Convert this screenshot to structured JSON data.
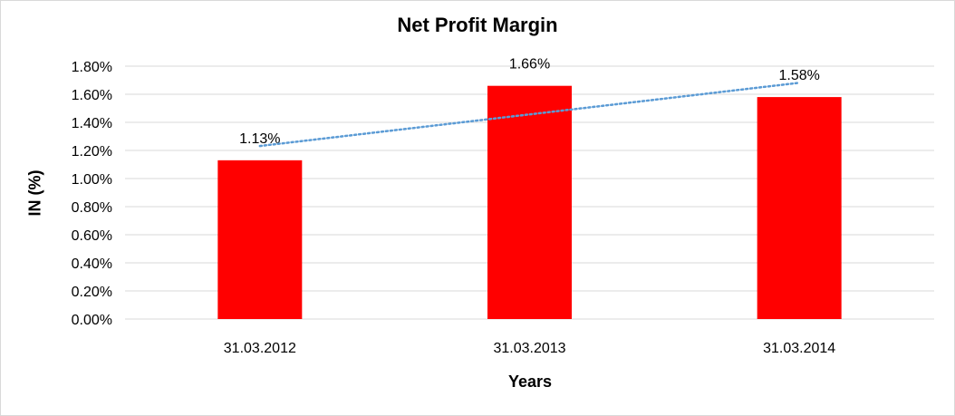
{
  "chart_data": {
    "type": "bar",
    "title": "Net Profit Margin",
    "xlabel": "Years",
    "ylabel": "IN (%)",
    "categories": [
      "31.03.2012",
      "31.03.2013",
      "31.03.2014"
    ],
    "values": [
      1.13,
      1.66,
      1.58
    ],
    "value_labels": [
      "1.13%",
      "1.66%",
      "1.58%"
    ],
    "ylim": [
      0,
      1.8
    ],
    "yticks": [
      "0.00%",
      "0.20%",
      "0.40%",
      "0.60%",
      "0.80%",
      "1.00%",
      "1.20%",
      "1.40%",
      "1.60%",
      "1.80%"
    ],
    "trendline": {
      "type": "linear",
      "style": "dotted"
    },
    "grid": true,
    "legend": "none",
    "colors": {
      "bar": "#ff0000",
      "trendline": "#5b9bd5",
      "grid": "#d9d9d9"
    }
  }
}
